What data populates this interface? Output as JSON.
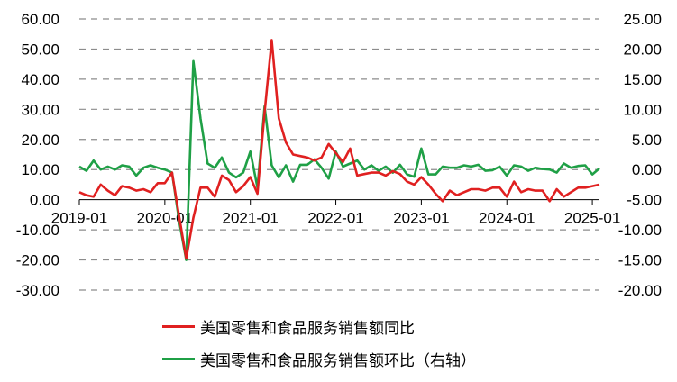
{
  "chart_data": {
    "type": "line",
    "title": "",
    "xlabel": "",
    "ylabel": "",
    "x_ticks": [
      "2019-01",
      "2020-01",
      "2021-01",
      "2022-01",
      "2023-01",
      "2024-01",
      "2025-01"
    ],
    "y_left": {
      "ylim": [
        -30,
        60
      ],
      "ticks": [
        "60.00",
        "50.00",
        "40.00",
        "30.00",
        "20.00",
        "10.00",
        "0.00",
        "-10.00",
        "-20.00",
        "-30.00"
      ]
    },
    "y_right": {
      "ylim": [
        -20,
        25
      ],
      "ticks": [
        "25.00",
        "20.00",
        "15.00",
        "10.00",
        "5.00",
        "0.00",
        "-5.00",
        "-10.00",
        "-15.00",
        "-20.00"
      ]
    },
    "grid": true,
    "legend_position": "bottom",
    "x": [
      "2019-01",
      "2019-02",
      "2019-03",
      "2019-04",
      "2019-05",
      "2019-06",
      "2019-07",
      "2019-08",
      "2019-09",
      "2019-10",
      "2019-11",
      "2019-12",
      "2020-01",
      "2020-02",
      "2020-03",
      "2020-04",
      "2020-05",
      "2020-06",
      "2020-07",
      "2020-08",
      "2020-09",
      "2020-10",
      "2020-11",
      "2020-12",
      "2021-01",
      "2021-02",
      "2021-03",
      "2021-04",
      "2021-05",
      "2021-06",
      "2021-07",
      "2021-08",
      "2021-09",
      "2021-10",
      "2021-11",
      "2021-12",
      "2022-01",
      "2022-02",
      "2022-03",
      "2022-04",
      "2022-05",
      "2022-06",
      "2022-07",
      "2022-08",
      "2022-09",
      "2022-10",
      "2022-11",
      "2022-12",
      "2023-01",
      "2023-02",
      "2023-03",
      "2023-04",
      "2023-05",
      "2023-06",
      "2023-07",
      "2023-08",
      "2023-09",
      "2023-10",
      "2023-11",
      "2023-12",
      "2024-01",
      "2024-02",
      "2024-03",
      "2024-04",
      "2024-05",
      "2024-06",
      "2024-07",
      "2024-08",
      "2024-09",
      "2024-10",
      "2024-11",
      "2024-12",
      "2025-01",
      "2025-02"
    ],
    "series": [
      {
        "name": "美国零售和食品服务销售额同比",
        "axis": "left",
        "color": "#e02020",
        "values": [
          2.5,
          1.5,
          1.0,
          5.0,
          3.0,
          1.5,
          4.5,
          4.0,
          3.0,
          3.5,
          2.5,
          5.5,
          5.5,
          9.0,
          -5.5,
          -19.5,
          -6.0,
          4.0,
          4.0,
          1.0,
          8.0,
          6.5,
          2.5,
          4.5,
          7.5,
          2.0,
          29.0,
          53.0,
          27.0,
          19.0,
          15.0,
          14.5,
          14.0,
          13.0,
          14.0,
          18.5,
          15.5,
          12.5,
          17.0,
          8.0,
          8.5,
          9.0,
          9.0,
          8.0,
          9.5,
          8.5,
          6.0,
          5.0,
          7.5,
          5.0,
          2.0,
          -0.5,
          3.0,
          1.5,
          2.5,
          3.5,
          3.5,
          3.0,
          4.0,
          4.0,
          1.0,
          6.0,
          2.5,
          3.5,
          3.0,
          3.0,
          -0.5,
          3.5,
          1.0,
          2.5,
          4.0,
          4.0,
          4.5,
          5.0
        ]
      },
      {
        "name": "美国零售和食品服务销售额环比（右轴）",
        "axis": "right",
        "color": "#1fa046",
        "values": [
          0.5,
          -0.2,
          1.5,
          0.0,
          0.5,
          0.0,
          0.7,
          0.5,
          -1.0,
          0.3,
          0.7,
          0.3,
          0.0,
          -0.5,
          -8.5,
          -15.0,
          18.0,
          8.5,
          1.0,
          0.3,
          2.0,
          -0.5,
          -1.3,
          -0.5,
          3.0,
          -3.0,
          10.5,
          0.7,
          -1.3,
          0.7,
          -2.0,
          0.8,
          0.8,
          1.7,
          0.3,
          -1.5,
          3.0,
          0.5,
          1.0,
          1.5,
          0.0,
          0.7,
          -0.2,
          0.5,
          -0.5,
          0.8,
          -0.8,
          -1.2,
          3.5,
          -0.8,
          -0.8,
          0.5,
          0.3,
          0.3,
          0.7,
          0.5,
          0.8,
          -0.2,
          -0.1,
          0.5,
          -1.0,
          0.7,
          0.5,
          -0.2,
          0.3,
          0.1,
          0.0,
          -0.5,
          1.0,
          0.3,
          0.6,
          0.7,
          -0.8,
          0.2
        ]
      }
    ]
  }
}
